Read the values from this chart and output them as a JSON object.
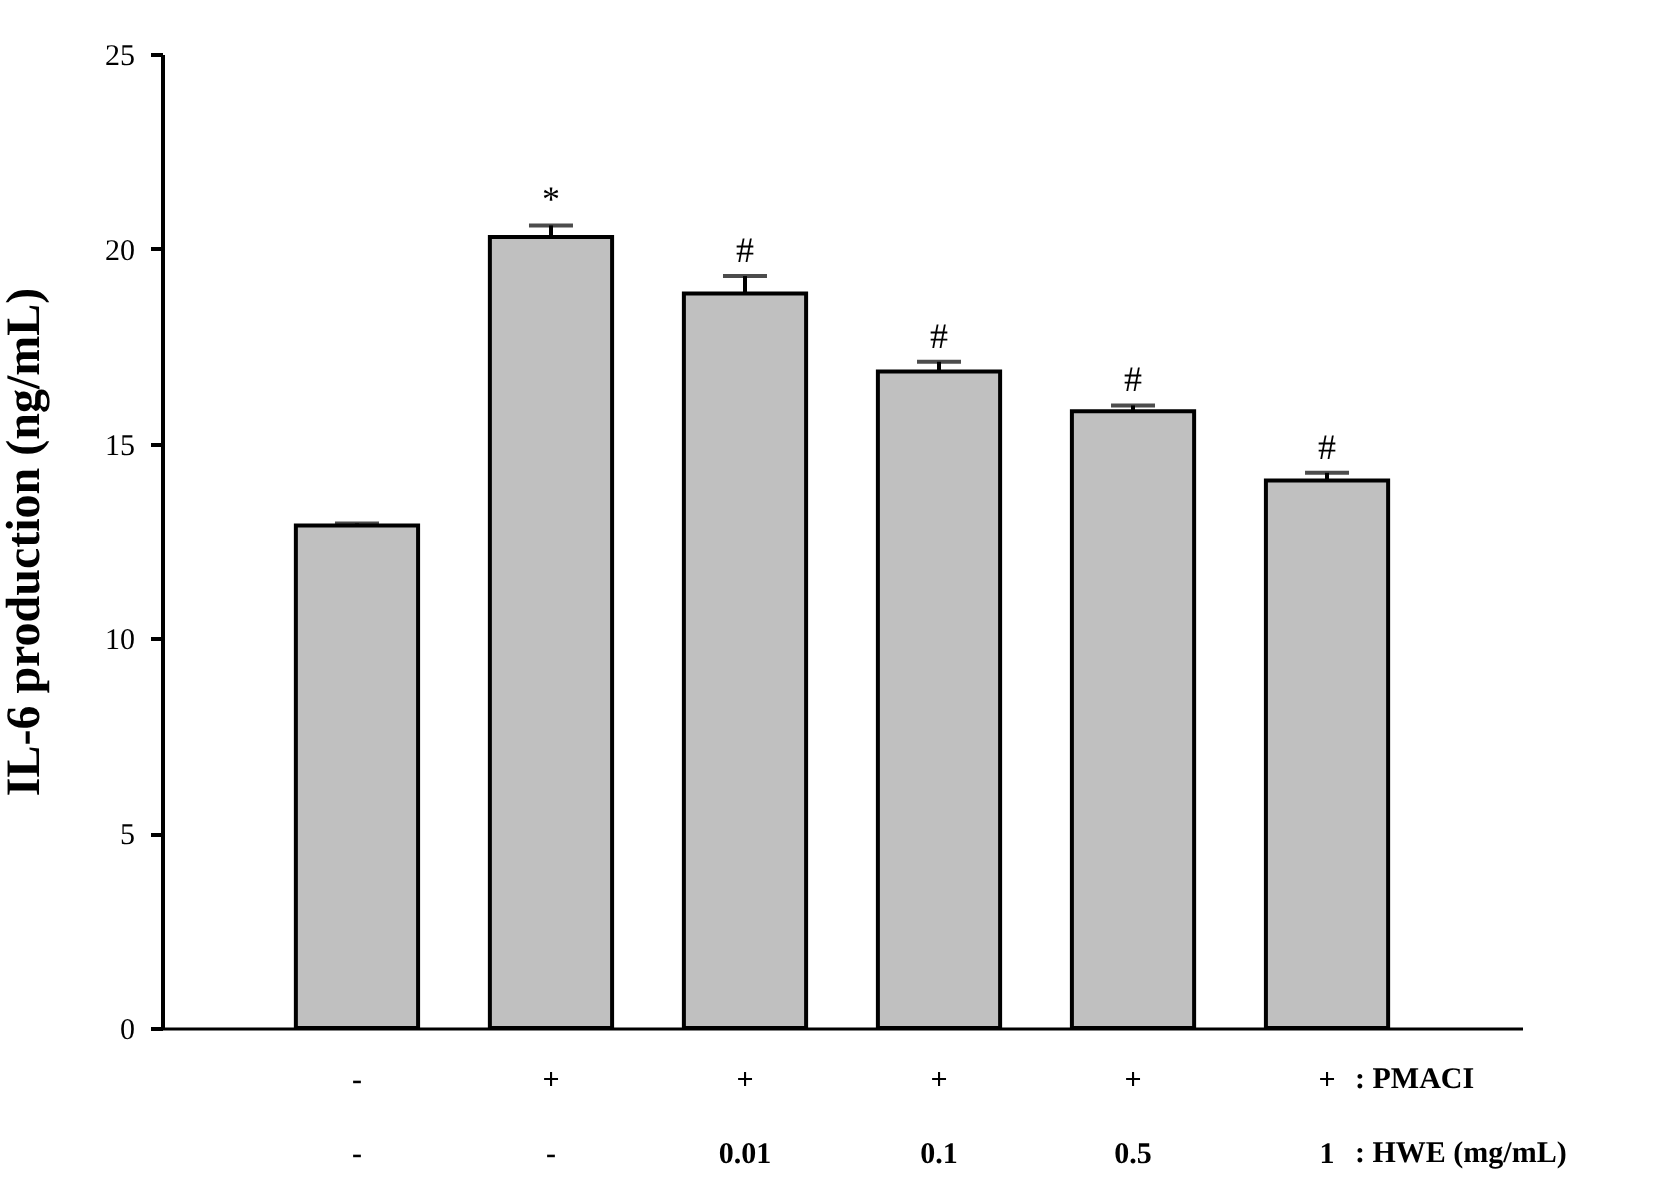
{
  "chart_data": {
    "type": "bar",
    "ylabel": "IL-6 production (ng/mL)",
    "categories": [
      "-\n-",
      "+\n-",
      "+\n0.01",
      "+\n0.1",
      "+\n0.5",
      "+\n1"
    ],
    "values": [
      12.9,
      20.3,
      18.85,
      16.85,
      15.83,
      14.05
    ],
    "errors": [
      0.05,
      0.3,
      0.45,
      0.25,
      0.15,
      0.2
    ],
    "color": "#c0c0c0",
    "ylim": [
      0,
      25
    ],
    "yticks": [
      0,
      5,
      10,
      15,
      20,
      25
    ],
    "annotations": [
      ": PMACI",
      ": HWE (mg/mL)",
      {
        "text": "*",
        "x": "+\n-",
        "y": 20.6
      },
      {
        "text": "#",
        "x": "+\n0.01",
        "y": 19.3
      },
      {
        "text": "#",
        "x": "+\n0.1",
        "y": 17.1
      },
      {
        "text": "#",
        "x": "+\n0.5",
        "y": 15.98
      },
      {
        "text": "#",
        "x": "+\n1",
        "y": 14.25
      }
    ]
  }
}
